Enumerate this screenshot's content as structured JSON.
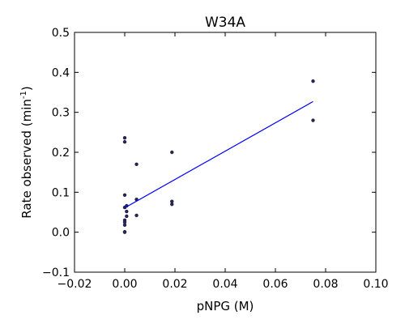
{
  "chart_data": {
    "type": "scatter",
    "title": "W34A",
    "xlabel": "pNPG (M)",
    "ylabel": {
      "text": "Rate observed (min",
      "sup": "-1",
      "suffix": ")"
    },
    "xlim": [
      -0.02,
      0.1
    ],
    "ylim": [
      -0.1,
      0.5
    ],
    "xticks": [
      -0.02,
      0.0,
      0.02,
      0.04,
      0.06,
      0.08,
      0.1
    ],
    "xtick_labels": [
      "−0.02",
      "0.00",
      "0.02",
      "0.04",
      "0.06",
      "0.08",
      "0.10"
    ],
    "yticks": [
      -0.1,
      0.0,
      0.1,
      0.2,
      0.3,
      0.4,
      0.5
    ],
    "ytick_labels": [
      "−0.1",
      "0.0",
      "0.1",
      "0.2",
      "0.3",
      "0.4",
      "0.5"
    ],
    "grid": false,
    "series": [
      {
        "kind": "scatter",
        "color": "#25254f",
        "points": [
          {
            "x": 0.0,
            "y": 0.0
          },
          {
            "x": 0.0,
            "y": 0.001
          },
          {
            "x": 0.0,
            "y": 0.018
          },
          {
            "x": 0.0,
            "y": 0.025
          },
          {
            "x": 0.0,
            "y": 0.03
          },
          {
            "x": 0.0,
            "y": 0.062
          },
          {
            "x": 0.0,
            "y": 0.093
          },
          {
            "x": 0.0,
            "y": 0.226
          },
          {
            "x": 0.0,
            "y": 0.236
          },
          {
            "x": 0.00075,
            "y": 0.066
          },
          {
            "x": 0.00075,
            "y": 0.052
          },
          {
            "x": 0.00075,
            "y": 0.04
          },
          {
            "x": 0.0047,
            "y": 0.17
          },
          {
            "x": 0.0047,
            "y": 0.082
          },
          {
            "x": 0.0047,
            "y": 0.042
          },
          {
            "x": 0.0188,
            "y": 0.2
          },
          {
            "x": 0.0188,
            "y": 0.077
          },
          {
            "x": 0.0188,
            "y": 0.07
          },
          {
            "x": 0.075,
            "y": 0.378
          },
          {
            "x": 0.075,
            "y": 0.28
          }
        ]
      },
      {
        "kind": "line",
        "color": "#0000ff",
        "points": [
          {
            "x": 0.0,
            "y": 0.061
          },
          {
            "x": 0.075,
            "y": 0.327
          }
        ]
      }
    ]
  }
}
